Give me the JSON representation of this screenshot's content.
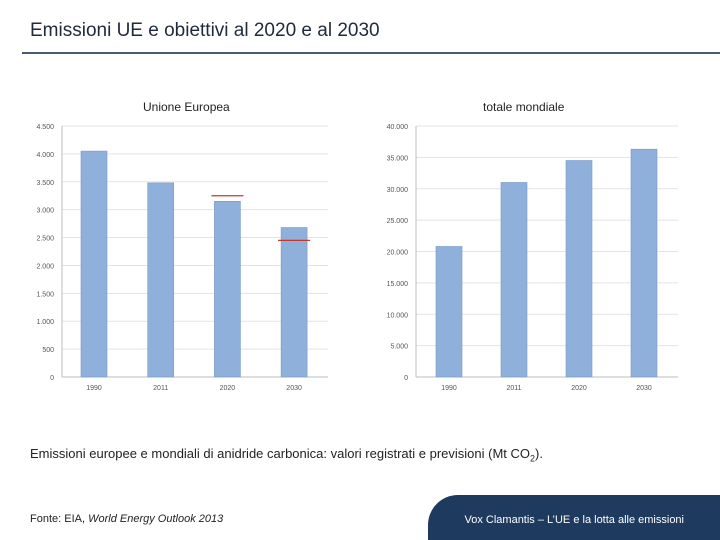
{
  "slide": {
    "title": "Emissioni UE e obiettivi al 2020 e al 2030",
    "caption_main": "Emissioni europee e mondiali di anidride carbonica: valori registrati e previsioni (Mt CO",
    "caption_sub": "2",
    "caption_end": ").",
    "source_prefix": "Fonte: EIA, ",
    "source_title": "World Energy Outlook 2013",
    "footer": "Vox Clamantis – L’UE e la lotta alle emissioni"
  },
  "chart_data": [
    {
      "type": "bar",
      "title": "Unione Europea",
      "categories": [
        "1990",
        "2011",
        "2020",
        "2030"
      ],
      "values": [
        4050,
        3480,
        3150,
        2680
      ],
      "targets": [
        null,
        null,
        3250,
        2450
      ],
      "ylim": [
        0,
        4500
      ],
      "ticks": [
        0,
        500,
        1000,
        1500,
        2000,
        2500,
        3000,
        3500,
        4000,
        4500
      ],
      "tick_labels": [
        "0",
        "500",
        "1.000",
        "1.500",
        "2.000",
        "2.500",
        "3.000",
        "3.500",
        "4.000",
        "4.500"
      ],
      "grid": true,
      "bar_color": "#8eb0da",
      "target_color": "#c0392b"
    },
    {
      "type": "bar",
      "title": "totale mondiale",
      "categories": [
        "1990",
        "2011",
        "2020",
        "2030"
      ],
      "values": [
        20800,
        31000,
        34500,
        36300
      ],
      "ylim": [
        0,
        40000
      ],
      "ticks": [
        0,
        5000,
        10000,
        15000,
        20000,
        25000,
        30000,
        35000,
        40000
      ],
      "tick_labels": [
        "0",
        "5.000",
        "10.000",
        "15.000",
        "20.000",
        "25.000",
        "30.000",
        "35.000",
        "40.000"
      ],
      "grid": true,
      "bar_color": "#8eb0da"
    }
  ]
}
